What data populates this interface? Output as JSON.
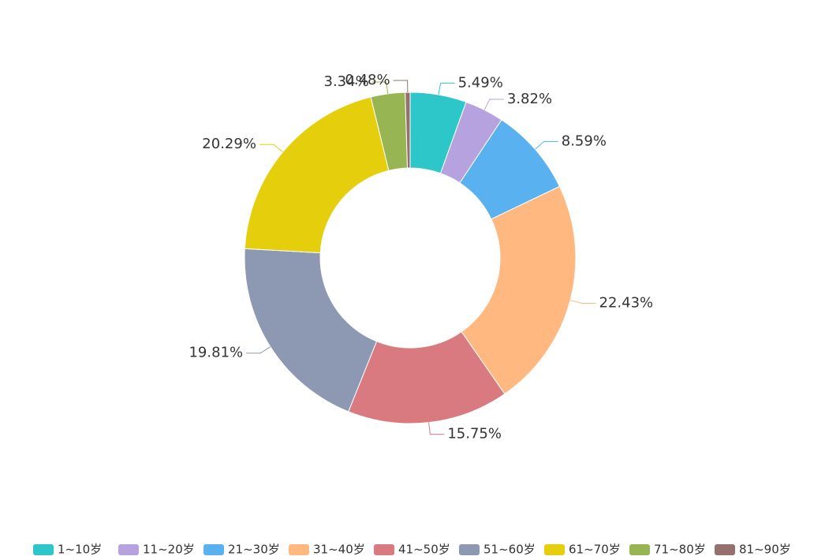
{
  "chart_data": {
    "type": "donut",
    "categories": [
      "1~10岁",
      "11~20岁",
      "21~30岁",
      "31~40岁",
      "41~50岁",
      "51~60岁",
      "61~70岁",
      "71~80岁",
      "81~90岁"
    ],
    "values": [
      5.49,
      3.82,
      8.59,
      22.43,
      15.75,
      19.81,
      20.29,
      3.34,
      0.48
    ],
    "value_labels": [
      "5.49%",
      "3.82%",
      "8.59%",
      "22.43%",
      "15.75%",
      "19.81%",
      "20.29%",
      "3.34%",
      "0.48%"
    ],
    "colors": [
      "#2ec7c9",
      "#b6a2de",
      "#5ab1ef",
      "#ffb980",
      "#d87a80",
      "#8d98b3",
      "#e5cf0d",
      "#97b552",
      "#95706d"
    ],
    "legend": "bottom"
  }
}
